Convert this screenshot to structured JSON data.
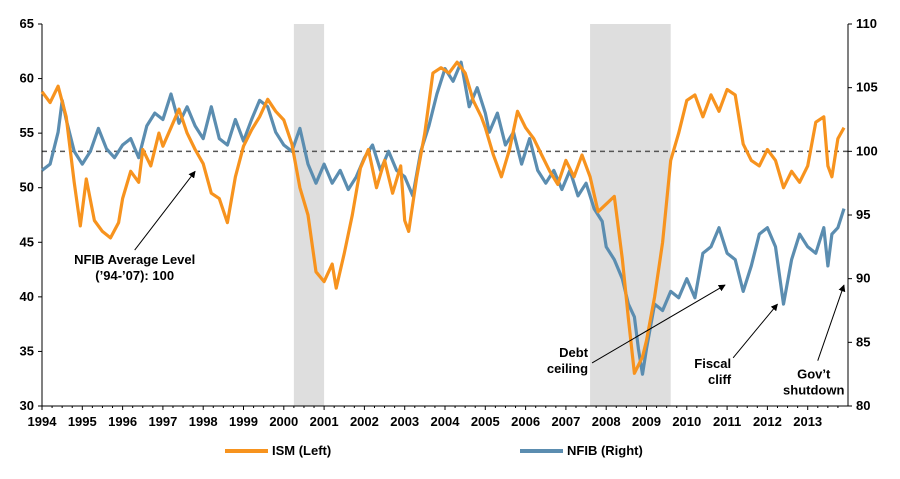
{
  "chart_data": {
    "type": "line",
    "title": "",
    "x_range": [
      1994.0,
      2014.0
    ],
    "y_left": {
      "range": [
        30,
        65
      ],
      "ticks": [
        "30",
        "35",
        "40",
        "45",
        "50",
        "55",
        "60",
        "65"
      ]
    },
    "y_right": {
      "range": [
        80,
        110
      ],
      "ticks": [
        "80",
        "85",
        "90",
        "95",
        "100",
        "105",
        "110"
      ]
    },
    "x_ticks": [
      "1994",
      "1995",
      "1996",
      "1997",
      "1998",
      "1999",
      "2000",
      "2001",
      "2002",
      "2003",
      "2004",
      "2005",
      "2006",
      "2007",
      "2008",
      "2009",
      "2010",
      "2011",
      "2012",
      "2013"
    ],
    "recessions": [
      [
        2000.25,
        2001.0
      ],
      [
        2007.6,
        2009.6
      ]
    ],
    "reference_line": {
      "axis": "right",
      "value": 100
    },
    "grid": false,
    "legend_position": "bottom",
    "colors": {
      "ism": "#F7931E",
      "nfib": "#5B8DB0",
      "recession": "#DEDEDE",
      "reference": "#555555"
    },
    "series": [
      {
        "name": "ISM (Left)",
        "axis": "left",
        "points": [
          [
            1994.0,
            58.8
          ],
          [
            1994.2,
            57.8
          ],
          [
            1994.4,
            59.3
          ],
          [
            1994.6,
            56.5
          ],
          [
            1994.8,
            50.5
          ],
          [
            1994.95,
            46.5
          ],
          [
            1995.1,
            50.8
          ],
          [
            1995.3,
            47.0
          ],
          [
            1995.5,
            46.0
          ],
          [
            1995.7,
            45.4
          ],
          [
            1995.9,
            46.8
          ],
          [
            1996.0,
            49.0
          ],
          [
            1996.2,
            51.5
          ],
          [
            1996.4,
            50.5
          ],
          [
            1996.5,
            53.5
          ],
          [
            1996.7,
            52.0
          ],
          [
            1996.9,
            55.0
          ],
          [
            1997.0,
            53.8
          ],
          [
            1997.2,
            55.5
          ],
          [
            1997.4,
            57.2
          ],
          [
            1997.6,
            55.0
          ],
          [
            1997.8,
            53.5
          ],
          [
            1998.0,
            52.2
          ],
          [
            1998.2,
            49.5
          ],
          [
            1998.4,
            49.0
          ],
          [
            1998.6,
            46.8
          ],
          [
            1998.8,
            51.0
          ],
          [
            1999.0,
            53.8
          ],
          [
            1999.2,
            55.3
          ],
          [
            1999.4,
            56.5
          ],
          [
            1999.6,
            58.1
          ],
          [
            1999.8,
            57.0
          ],
          [
            2000.0,
            56.2
          ],
          [
            2000.2,
            54.0
          ],
          [
            2000.4,
            50.0
          ],
          [
            2000.6,
            47.5
          ],
          [
            2000.8,
            42.3
          ],
          [
            2001.0,
            41.4
          ],
          [
            2001.2,
            43.0
          ],
          [
            2001.3,
            40.8
          ],
          [
            2001.5,
            44.0
          ],
          [
            2001.7,
            47.5
          ],
          [
            2001.9,
            51.8
          ],
          [
            2002.1,
            53.5
          ],
          [
            2002.3,
            50.0
          ],
          [
            2002.5,
            52.5
          ],
          [
            2002.7,
            49.5
          ],
          [
            2002.9,
            52.0
          ],
          [
            2003.0,
            47.0
          ],
          [
            2003.1,
            46.0
          ],
          [
            2003.3,
            51.0
          ],
          [
            2003.5,
            55.0
          ],
          [
            2003.7,
            60.5
          ],
          [
            2003.9,
            61.0
          ],
          [
            2004.1,
            60.5
          ],
          [
            2004.3,
            61.5
          ],
          [
            2004.5,
            60.5
          ],
          [
            2004.7,
            58.0
          ],
          [
            2004.9,
            56.5
          ],
          [
            2005.0,
            55.5
          ],
          [
            2005.2,
            53.0
          ],
          [
            2005.4,
            51.0
          ],
          [
            2005.6,
            53.5
          ],
          [
            2005.8,
            57.0
          ],
          [
            2006.0,
            55.5
          ],
          [
            2006.2,
            54.5
          ],
          [
            2006.4,
            53.0
          ],
          [
            2006.6,
            51.5
          ],
          [
            2006.8,
            50.3
          ],
          [
            2007.0,
            52.5
          ],
          [
            2007.2,
            51.0
          ],
          [
            2007.4,
            53.0
          ],
          [
            2007.6,
            51.0
          ],
          [
            2007.8,
            47.8
          ],
          [
            2008.0,
            48.5
          ],
          [
            2008.2,
            49.2
          ],
          [
            2008.4,
            43.5
          ],
          [
            2008.55,
            38.0
          ],
          [
            2008.7,
            33.0
          ],
          [
            2008.9,
            34.5
          ],
          [
            2009.0,
            36.0
          ],
          [
            2009.2,
            40.0
          ],
          [
            2009.4,
            45.0
          ],
          [
            2009.6,
            52.5
          ],
          [
            2009.8,
            55.0
          ],
          [
            2010.0,
            58.0
          ],
          [
            2010.2,
            58.5
          ],
          [
            2010.4,
            56.5
          ],
          [
            2010.6,
            58.5
          ],
          [
            2010.8,
            57.0
          ],
          [
            2011.0,
            59.0
          ],
          [
            2011.2,
            58.5
          ],
          [
            2011.4,
            54.0
          ],
          [
            2011.6,
            52.5
          ],
          [
            2011.8,
            52.0
          ],
          [
            2012.0,
            53.5
          ],
          [
            2012.2,
            52.5
          ],
          [
            2012.4,
            50.0
          ],
          [
            2012.6,
            51.5
          ],
          [
            2012.8,
            50.5
          ],
          [
            2013.0,
            52.0
          ],
          [
            2013.2,
            56.0
          ],
          [
            2013.4,
            56.5
          ],
          [
            2013.5,
            52.0
          ],
          [
            2013.6,
            51.0
          ],
          [
            2013.75,
            54.5
          ],
          [
            2013.9,
            55.5
          ]
        ]
      },
      {
        "name": "NFIB (Right)",
        "axis": "right",
        "points": [
          [
            1994.0,
            98.5
          ],
          [
            1994.2,
            99.0
          ],
          [
            1994.4,
            101.5
          ],
          [
            1994.5,
            104.0
          ],
          [
            1994.6,
            102.5
          ],
          [
            1994.8,
            100.0
          ],
          [
            1995.0,
            99.0
          ],
          [
            1995.2,
            100.0
          ],
          [
            1995.4,
            101.8
          ],
          [
            1995.6,
            100.2
          ],
          [
            1995.8,
            99.5
          ],
          [
            1996.0,
            100.5
          ],
          [
            1996.2,
            101.0
          ],
          [
            1996.4,
            99.5
          ],
          [
            1996.6,
            102.0
          ],
          [
            1996.8,
            103.0
          ],
          [
            1997.0,
            102.5
          ],
          [
            1997.2,
            104.5
          ],
          [
            1997.4,
            102.2
          ],
          [
            1997.6,
            103.5
          ],
          [
            1997.8,
            102.0
          ],
          [
            1998.0,
            101.0
          ],
          [
            1998.2,
            103.5
          ],
          [
            1998.4,
            101.0
          ],
          [
            1998.6,
            100.5
          ],
          [
            1998.8,
            102.5
          ],
          [
            1999.0,
            100.8
          ],
          [
            1999.2,
            102.5
          ],
          [
            1999.4,
            104.0
          ],
          [
            1999.6,
            103.5
          ],
          [
            1999.8,
            101.5
          ],
          [
            2000.0,
            100.5
          ],
          [
            2000.2,
            100.0
          ],
          [
            2000.4,
            101.8
          ],
          [
            2000.6,
            99.0
          ],
          [
            2000.8,
            97.5
          ],
          [
            2001.0,
            99.0
          ],
          [
            2001.2,
            97.5
          ],
          [
            2001.4,
            98.5
          ],
          [
            2001.6,
            97.0
          ],
          [
            2001.8,
            98.0
          ],
          [
            2002.0,
            99.5
          ],
          [
            2002.2,
            100.5
          ],
          [
            2002.4,
            98.5
          ],
          [
            2002.6,
            100.0
          ],
          [
            2002.8,
            98.5
          ],
          [
            2003.0,
            98.0
          ],
          [
            2003.2,
            96.5
          ],
          [
            2003.4,
            100.0
          ],
          [
            2003.6,
            102.0
          ],
          [
            2003.8,
            104.5
          ],
          [
            2004.0,
            106.5
          ],
          [
            2004.2,
            105.5
          ],
          [
            2004.4,
            107.0
          ],
          [
            2004.6,
            103.5
          ],
          [
            2004.8,
            105.0
          ],
          [
            2005.0,
            103.0
          ],
          [
            2005.1,
            101.5
          ],
          [
            2005.3,
            103.0
          ],
          [
            2005.5,
            100.5
          ],
          [
            2005.7,
            101.5
          ],
          [
            2005.9,
            99.0
          ],
          [
            2006.1,
            101.0
          ],
          [
            2006.3,
            98.5
          ],
          [
            2006.5,
            97.5
          ],
          [
            2006.7,
            98.5
          ],
          [
            2006.9,
            97.0
          ],
          [
            2007.1,
            98.5
          ],
          [
            2007.3,
            96.5
          ],
          [
            2007.5,
            97.5
          ],
          [
            2007.7,
            95.5
          ],
          [
            2007.9,
            94.5
          ],
          [
            2008.0,
            92.5
          ],
          [
            2008.2,
            91.5
          ],
          [
            2008.4,
            90.0
          ],
          [
            2008.55,
            88.0
          ],
          [
            2008.7,
            87.0
          ],
          [
            2008.8,
            84.5
          ],
          [
            2008.9,
            82.5
          ],
          [
            2009.0,
            84.5
          ],
          [
            2009.2,
            88.0
          ],
          [
            2009.4,
            87.5
          ],
          [
            2009.6,
            89.0
          ],
          [
            2009.8,
            88.5
          ],
          [
            2010.0,
            90.0
          ],
          [
            2010.2,
            88.5
          ],
          [
            2010.4,
            92.0
          ],
          [
            2010.6,
            92.5
          ],
          [
            2010.8,
            94.0
          ],
          [
            2011.0,
            92.0
          ],
          [
            2011.2,
            91.5
          ],
          [
            2011.4,
            89.0
          ],
          [
            2011.6,
            91.0
          ],
          [
            2011.8,
            93.5
          ],
          [
            2012.0,
            94.0
          ],
          [
            2012.2,
            92.5
          ],
          [
            2012.4,
            88.0
          ],
          [
            2012.6,
            91.5
          ],
          [
            2012.8,
            93.5
          ],
          [
            2013.0,
            92.5
          ],
          [
            2013.2,
            92.0
          ],
          [
            2013.4,
            94.0
          ],
          [
            2013.5,
            91.0
          ],
          [
            2013.6,
            93.5
          ],
          [
            2013.75,
            94.0
          ],
          [
            2013.9,
            95.5
          ]
        ]
      }
    ],
    "annotations": [
      {
        "lines": [
          "NFIB Average Level",
          "(’94-’07): 100"
        ],
        "x": 1996.3,
        "y": 43.0,
        "axis": "left",
        "arrow_to": [
          1997.8,
          51.5
        ],
        "anchor": "middle"
      },
      {
        "lines": [
          "Debt",
          "ceiling"
        ],
        "x": 2007.55,
        "y": 34.5,
        "axis": "left",
        "arrow_to": [
          2010.95,
          89.5
        ],
        "arrow_axis": "right",
        "anchor": "end"
      },
      {
        "lines": [
          "Fiscal",
          "cliff"
        ],
        "x": 2011.1,
        "y": 33.5,
        "axis": "left",
        "arrow_to": [
          2012.25,
          88.0
        ],
        "arrow_axis": "right",
        "anchor": "end"
      },
      {
        "lines": [
          "Gov’t",
          "shutdown"
        ],
        "x": 2013.15,
        "y": 32.5,
        "axis": "left",
        "arrow_to": [
          2013.9,
          89.5
        ],
        "arrow_axis": "right",
        "anchor": "middle"
      }
    ]
  }
}
